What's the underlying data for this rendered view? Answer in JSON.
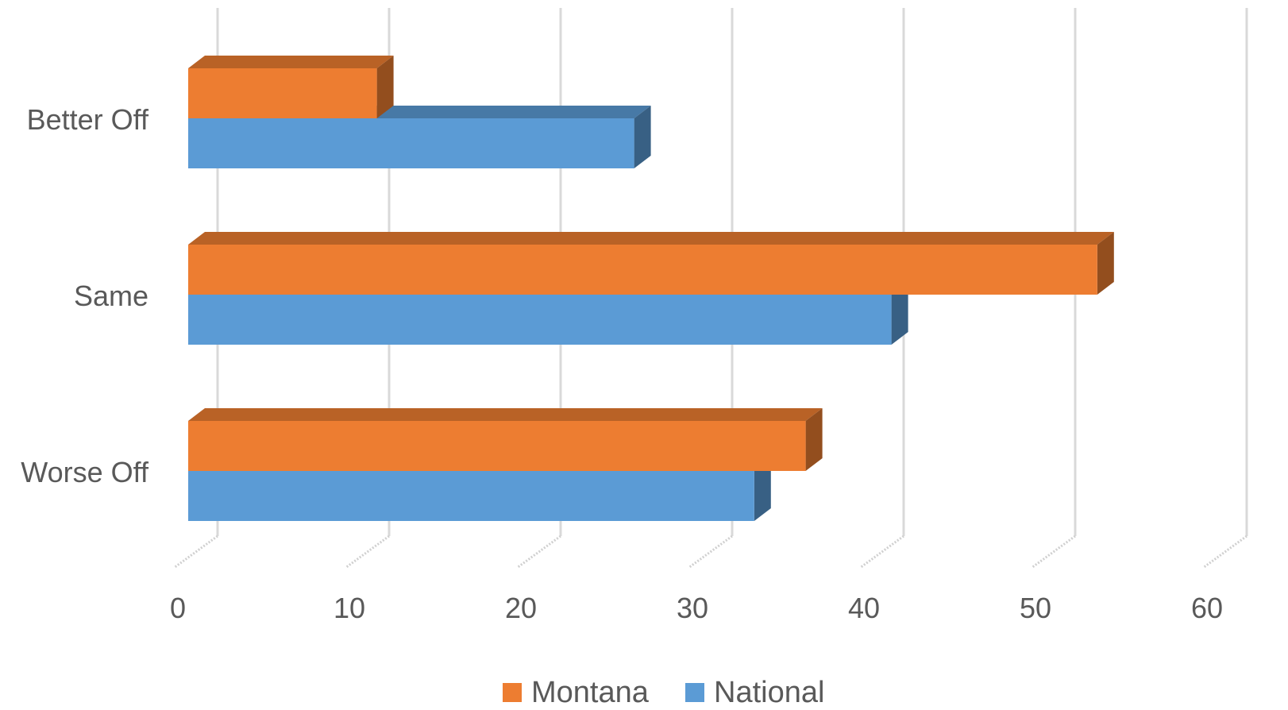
{
  "chart_data": {
    "type": "bar",
    "orientation": "horizontal",
    "style": "3d",
    "categories": [
      "Better Off",
      "Same",
      "Worse Off"
    ],
    "series": [
      {
        "name": "Montana",
        "color": "#ED7D31",
        "values": [
          11,
          53,
          36
        ]
      },
      {
        "name": "National",
        "color": "#5B9BD5",
        "values": [
          26,
          41,
          33
        ]
      }
    ],
    "xlim": [
      0,
      60
    ],
    "xticks": [
      0,
      10,
      20,
      30,
      40,
      50,
      60
    ],
    "title": "",
    "xlabel": "",
    "ylabel": "",
    "grid": true,
    "legend": "bottom"
  }
}
